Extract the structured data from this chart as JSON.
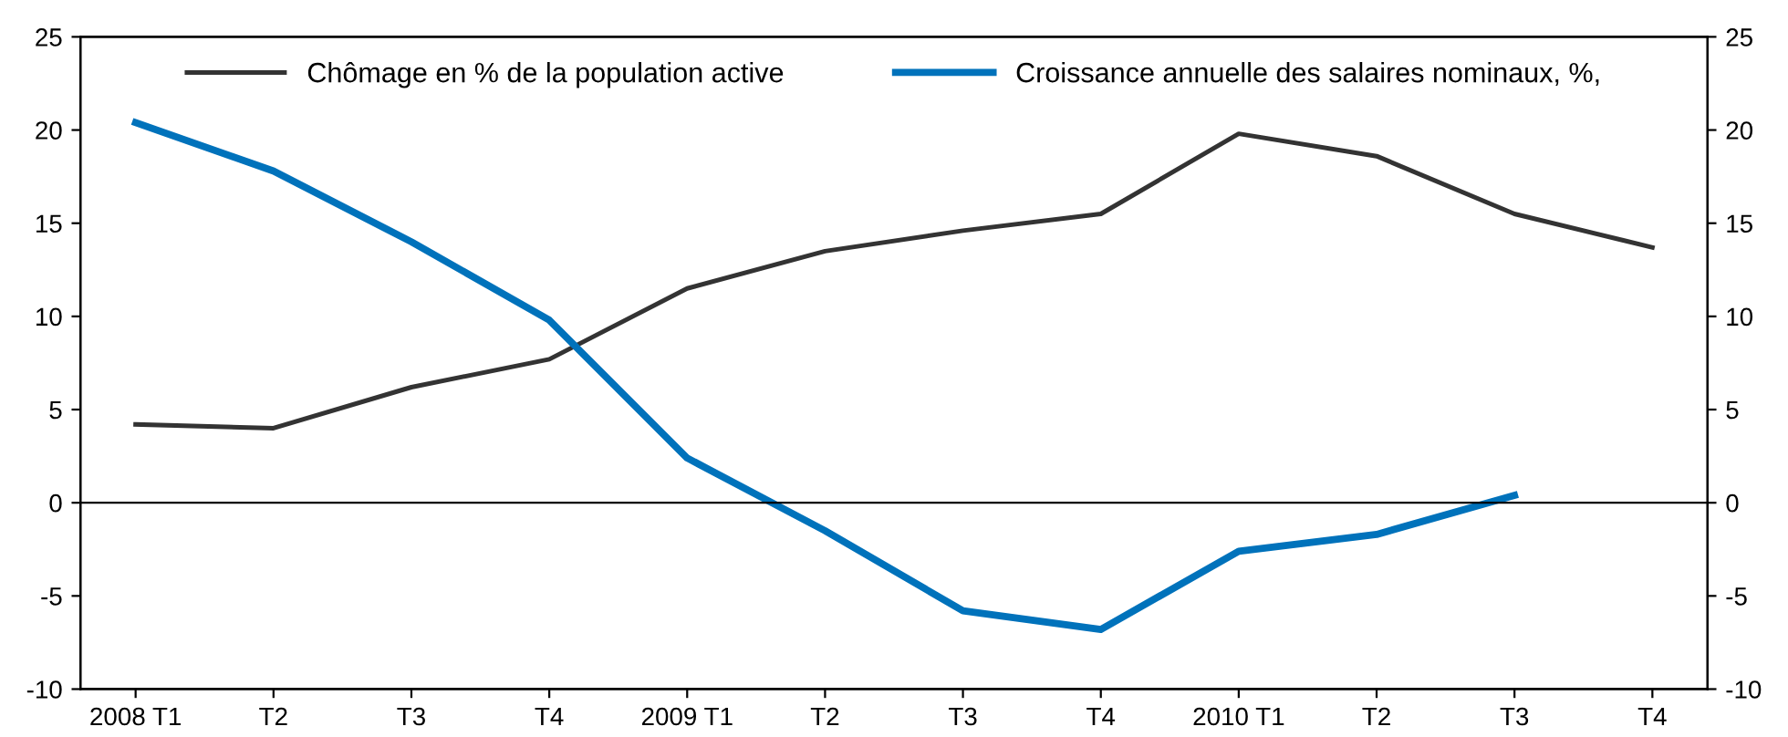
{
  "chart_data": {
    "type": "line",
    "categories": [
      "2008 T1",
      "T2",
      "T3",
      "T4",
      "2009 T1",
      "T2",
      "T3",
      "T4",
      "2010 T1",
      "T2",
      "T3",
      "T4"
    ],
    "series": [
      {
        "name": "Chômage en % de la population active",
        "color": "#333333",
        "values": [
          4.2,
          4.0,
          6.2,
          7.7,
          11.5,
          13.5,
          14.6,
          15.5,
          19.8,
          18.6,
          15.5,
          13.7
        ]
      },
      {
        "name": "Croissance annuelle des salaires nominaux, %,",
        "color": "#0072bb",
        "values": [
          20.4,
          17.8,
          14.0,
          9.8,
          2.4,
          -1.5,
          -5.8,
          -6.8,
          -2.6,
          -1.7,
          0.4,
          null
        ]
      }
    ],
    "ylim": [
      -10,
      25
    ],
    "yticks": [
      -10,
      -5,
      0,
      5,
      10,
      15,
      20,
      25
    ],
    "y2lim": [
      -10,
      25
    ],
    "y2ticks": [
      -10,
      -5,
      0,
      5,
      10,
      15,
      20,
      25
    ],
    "ref_lines": [
      {
        "axis": "y",
        "value": 0,
        "color": "#000000"
      }
    ],
    "legend": "top",
    "grid": false
  }
}
